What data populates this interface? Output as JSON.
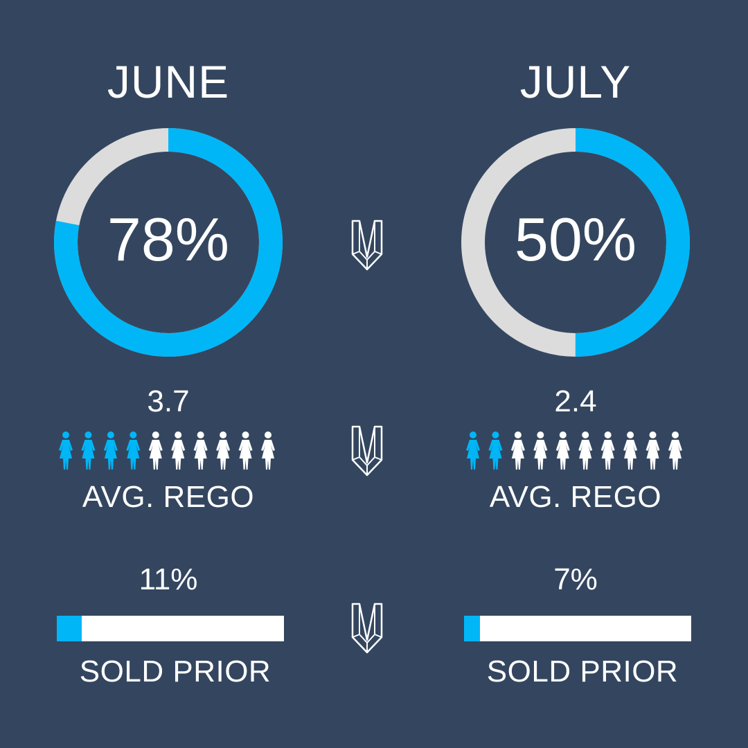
{
  "colors": {
    "background": "#34465f",
    "accent": "#00b6f7",
    "ring_track": "#dcdcdc",
    "text": "#ffffff"
  },
  "june": {
    "month": "JUNE",
    "percent_value": 78,
    "percent_label": "78%",
    "avg_rego_value": "3.7",
    "avg_rego_number": 3.7,
    "people_total": 10,
    "avg_rego_label": "AVG. REGO",
    "sold_prior_value": "11%",
    "sold_prior_fraction": 0.11,
    "sold_prior_label": "SOLD PRIOR"
  },
  "july": {
    "month": "JULY",
    "percent_value": 50,
    "percent_label": "50%",
    "avg_rego_value": "2.4",
    "avg_rego_number": 2.4,
    "people_total": 10,
    "avg_rego_label": "AVG. REGO",
    "sold_prior_value": "7%",
    "sold_prior_fraction": 0.07,
    "sold_prior_label": "SOLD PRIOR"
  },
  "icons": {
    "comparison": "chevron-down-icon",
    "person": "person-icon"
  }
}
